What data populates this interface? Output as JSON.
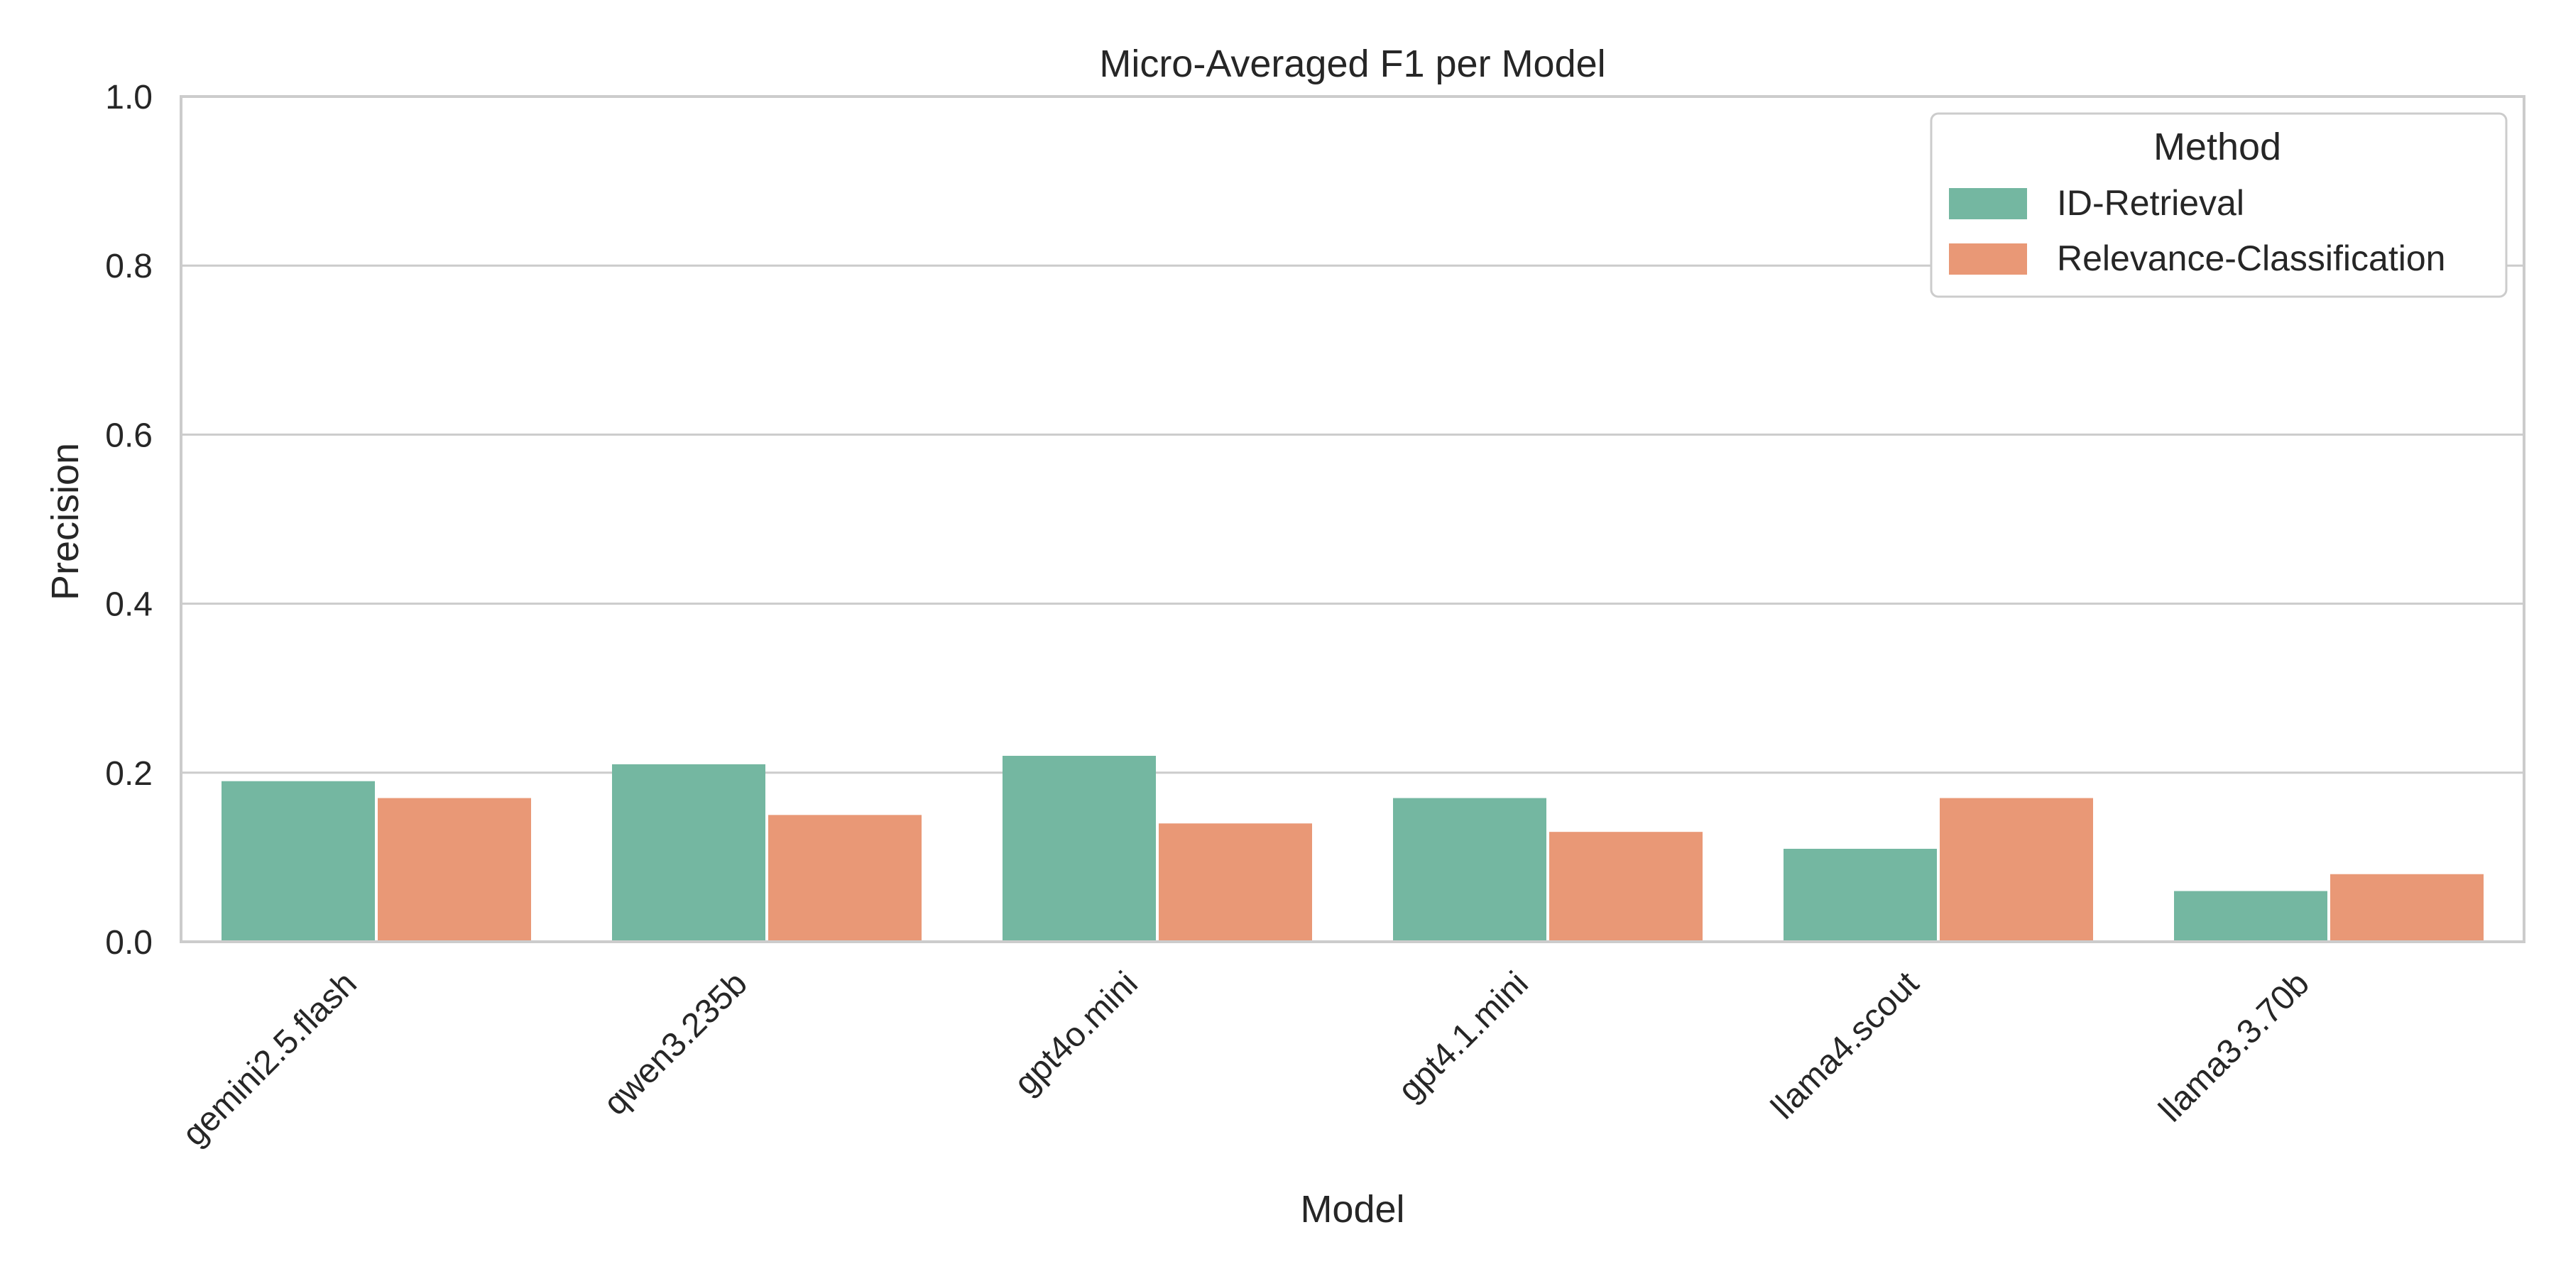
{
  "chart_data": {
    "type": "bar",
    "title": "Micro-Averaged F1 per Model",
    "xlabel": "Model",
    "ylabel": "Precision",
    "ylim": [
      0,
      1
    ],
    "yticks": [
      0.0,
      0.2,
      0.4,
      0.6,
      0.8,
      1.0
    ],
    "ytick_labels": [
      "0.0",
      "0.2",
      "0.4",
      "0.6",
      "0.8",
      "1.0"
    ],
    "grid": "horizontal",
    "categories": [
      "gemini2.5.flash",
      "qwen3.235b",
      "gpt4o.mini",
      "gpt4.1.mini",
      "llama4.scout",
      "llama3.3.70b"
    ],
    "legend": {
      "title": "Method",
      "placement": "top-right"
    },
    "series": [
      {
        "name": "ID-Retrieval",
        "color": "#74b7a1",
        "values": [
          0.19,
          0.21,
          0.22,
          0.17,
          0.11,
          0.06
        ]
      },
      {
        "name": "Relevance-Classification",
        "color": "#e99876",
        "values": [
          0.17,
          0.15,
          0.14,
          0.13,
          0.17,
          0.08
        ]
      }
    ]
  }
}
